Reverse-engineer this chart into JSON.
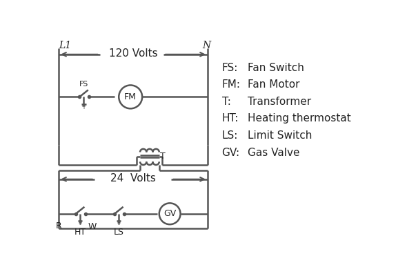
{
  "bg_color": "#ffffff",
  "line_color": "#555555",
  "text_color": "#222222",
  "linewidth": 1.8,
  "legend": {
    "FS": "Fan Switch",
    "FM": "Fan Motor",
    "T": "Transformer",
    "HT": "Heating thermostat",
    "LS": "Limit Switch",
    "GV": "Gas Valve"
  },
  "label_L1": "L1",
  "label_N": "N",
  "label_120": "120 Volts",
  "label_24": "24  Volts",
  "label_T": "T"
}
